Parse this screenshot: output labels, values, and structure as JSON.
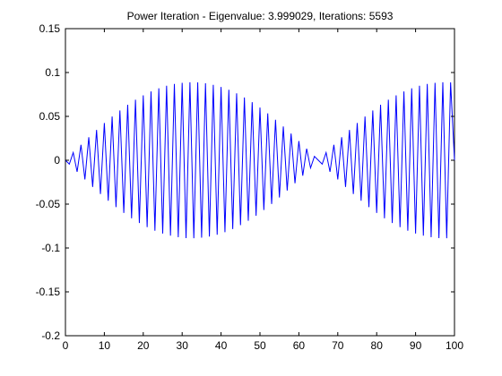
{
  "chart_data": {
    "type": "line",
    "title": "Power Iteration - Eigenvalue: 3.999029, Iterations: 5593",
    "xlabel": "",
    "ylabel": "",
    "xlim": [
      0,
      100
    ],
    "ylim": [
      -0.2,
      0.15
    ],
    "x_ticks": [
      0,
      10,
      20,
      30,
      40,
      50,
      60,
      70,
      80,
      90,
      100
    ],
    "x_tick_labels": [
      "0",
      "10",
      "20",
      "30",
      "40",
      "50",
      "60",
      "70",
      "80",
      "90",
      "100"
    ],
    "y_ticks": [
      -0.2,
      -0.15,
      -0.1,
      -0.05,
      0,
      0.05,
      0.1,
      0.15
    ],
    "y_tick_labels": [
      "-0.2",
      "-0.15",
      "-0.1",
      "-0.05",
      "0",
      "0.05",
      "0.1",
      "0.15"
    ],
    "grid": false,
    "legend": "none",
    "line_color": "#0000ff",
    "series": [
      {
        "x": [
          0,
          1,
          2,
          3,
          4,
          5,
          6,
          7,
          8,
          9,
          10,
          11,
          12,
          13,
          14,
          15,
          16,
          17,
          18,
          19,
          20,
          21,
          22,
          23,
          24,
          25,
          26,
          27,
          28,
          29,
          30,
          31,
          32,
          33,
          34,
          35,
          36,
          37,
          38,
          39,
          40,
          41,
          42,
          43,
          44,
          45,
          46,
          47,
          48,
          49,
          50,
          51,
          52,
          53,
          54,
          55,
          56,
          57,
          58,
          59,
          60,
          61,
          62,
          63,
          64,
          65,
          66,
          67,
          68,
          69,
          70,
          71,
          72,
          73,
          74,
          75,
          76,
          77,
          78,
          79,
          80,
          81,
          82,
          83,
          84,
          85,
          86,
          87,
          88,
          89,
          90,
          91,
          92,
          93,
          94,
          95,
          96,
          97,
          98,
          99,
          100
        ],
        "y": [
          0,
          -0.0044,
          0.0088,
          -0.0132,
          0.0176,
          -0.0219,
          0.0262,
          -0.0304,
          0.0345,
          -0.0385,
          0.0424,
          -0.0462,
          0.0499,
          -0.0534,
          0.0568,
          -0.0601,
          0.0632,
          -0.0662,
          0.069,
          -0.0716,
          0.074,
          -0.0763,
          0.0784,
          -0.0803,
          0.082,
          -0.0835,
          0.0849,
          -0.086,
          0.087,
          -0.0877,
          0.0883,
          -0.0887,
          0.0889,
          -0.0889,
          0.0887,
          -0.0883,
          0.0877,
          -0.087,
          0.086,
          -0.0849,
          0.0835,
          -0.082,
          0.0803,
          -0.0784,
          0.0763,
          -0.074,
          0.0716,
          -0.069,
          0.0662,
          -0.0632,
          0.0601,
          -0.0568,
          0.0534,
          -0.0499,
          0.0462,
          -0.0424,
          0.0385,
          -0.0345,
          0.0304,
          -0.0262,
          0.0219,
          -0.0176,
          0.0132,
          -0.0088,
          0.0044,
          0,
          -0.0044,
          0.0088,
          -0.0132,
          0.0176,
          -0.0219,
          0.0262,
          -0.0304,
          0.0345,
          -0.0385,
          0.0424,
          -0.0462,
          0.0499,
          -0.0534,
          0.0568,
          -0.0601,
          0.0632,
          -0.0662,
          0.069,
          -0.0716,
          0.074,
          -0.0763,
          0.0784,
          -0.0803,
          0.082,
          -0.0835,
          0.0849,
          -0.086,
          0.087,
          -0.0877,
          0.0883,
          -0.0887,
          0.0889,
          -0.0889,
          0.0887,
          0
        ]
      }
    ]
  }
}
